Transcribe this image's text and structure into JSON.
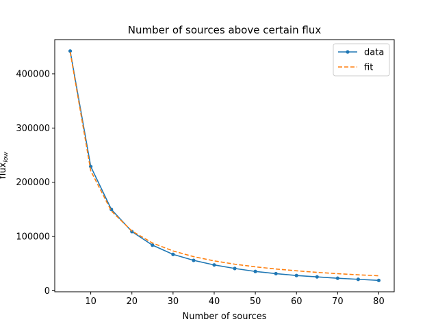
{
  "chart_data": {
    "type": "line",
    "title": "Number of sources above certain flux",
    "xlabel": "Number of sources",
    "ylabel": "flux_low",
    "xlim": [
      1.25,
      83.75
    ],
    "ylim": [
      -2000,
      463000
    ],
    "xticks": [
      10,
      20,
      30,
      40,
      50,
      60,
      70,
      80
    ],
    "yticks": [
      0,
      100000,
      200000,
      300000,
      400000
    ],
    "legend_position": "top-right",
    "series": [
      {
        "name": "data",
        "style": "solid-with-markers",
        "color": "#1f77b4",
        "x": [
          5,
          10,
          15,
          20,
          25,
          30,
          35,
          40,
          45,
          50,
          55,
          60,
          65,
          70,
          75,
          80
        ],
        "y": [
          442000,
          229000,
          150000,
          109000,
          84000,
          67000,
          56000,
          47500,
          41000,
          35500,
          31500,
          28000,
          25500,
          23000,
          21000,
          19000
        ]
      },
      {
        "name": "fit",
        "style": "dashed",
        "color": "#ff7f0e",
        "x": [
          5,
          10,
          15,
          20,
          25,
          30,
          35,
          40,
          45,
          50,
          55,
          60,
          65,
          70,
          75,
          80
        ],
        "y": [
          440000,
          221000,
          147000,
          110000,
          88000,
          73300,
          62800,
          55000,
          48900,
          44000,
          40000,
          36700,
          33800,
          31400,
          29300,
          27500
        ]
      }
    ]
  }
}
